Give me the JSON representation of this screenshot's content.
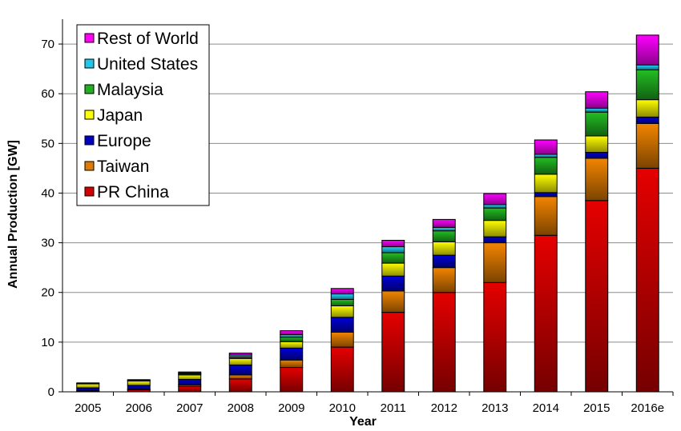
{
  "chart_data": {
    "type": "bar",
    "stacked": true,
    "categories": [
      "2005",
      "2006",
      "2007",
      "2008",
      "2009",
      "2010",
      "2011",
      "2012",
      "2013",
      "2014",
      "2015",
      "2016e"
    ],
    "xlabel": "Year",
    "ylabel": "Annual Production [GW]",
    "ylim": [
      0,
      75
    ],
    "yticks": [
      0,
      10,
      20,
      30,
      40,
      50,
      60,
      70
    ],
    "grid": true,
    "legend_position": "top-left",
    "series": [
      {
        "name": "PR China",
        "color": "#d40000",
        "values": [
          0.1,
          0.4,
          1.1,
          2.6,
          4.9,
          9.0,
          16.0,
          20.0,
          22.0,
          31.5,
          38.5,
          45.0
        ]
      },
      {
        "name": "Taiwan",
        "color": "#e07b00",
        "values": [
          0.1,
          0.1,
          0.3,
          0.8,
          1.5,
          3.0,
          4.3,
          5.0,
          8.0,
          7.8,
          8.5,
          9.0
        ]
      },
      {
        "name": "Europe",
        "color": "#0000c8",
        "values": [
          0.6,
          0.8,
          1.1,
          2.0,
          2.4,
          3.0,
          3.0,
          2.5,
          1.2,
          0.8,
          1.2,
          1.3
        ]
      },
      {
        "name": "Japan",
        "color": "#ffff00",
        "values": [
          0.8,
          0.9,
          0.9,
          1.3,
          1.3,
          2.3,
          2.6,
          2.7,
          3.3,
          3.7,
          3.3,
          3.5
        ]
      },
      {
        "name": "Malaysia",
        "color": "#20b020",
        "values": [
          0.0,
          0.05,
          0.2,
          0.3,
          0.9,
          1.3,
          2.1,
          2.2,
          2.5,
          3.4,
          4.8,
          6.0
        ]
      },
      {
        "name": "United States",
        "color": "#20c8e8",
        "values": [
          0.1,
          0.1,
          0.2,
          0.4,
          0.5,
          1.1,
          1.2,
          0.7,
          0.7,
          0.6,
          0.8,
          1.0
        ]
      },
      {
        "name": "Rest of World",
        "color": "#ff00ff",
        "values": [
          0.1,
          0.1,
          0.2,
          0.4,
          0.8,
          1.1,
          1.3,
          1.6,
          2.2,
          2.9,
          3.3,
          6.0
        ]
      }
    ]
  }
}
